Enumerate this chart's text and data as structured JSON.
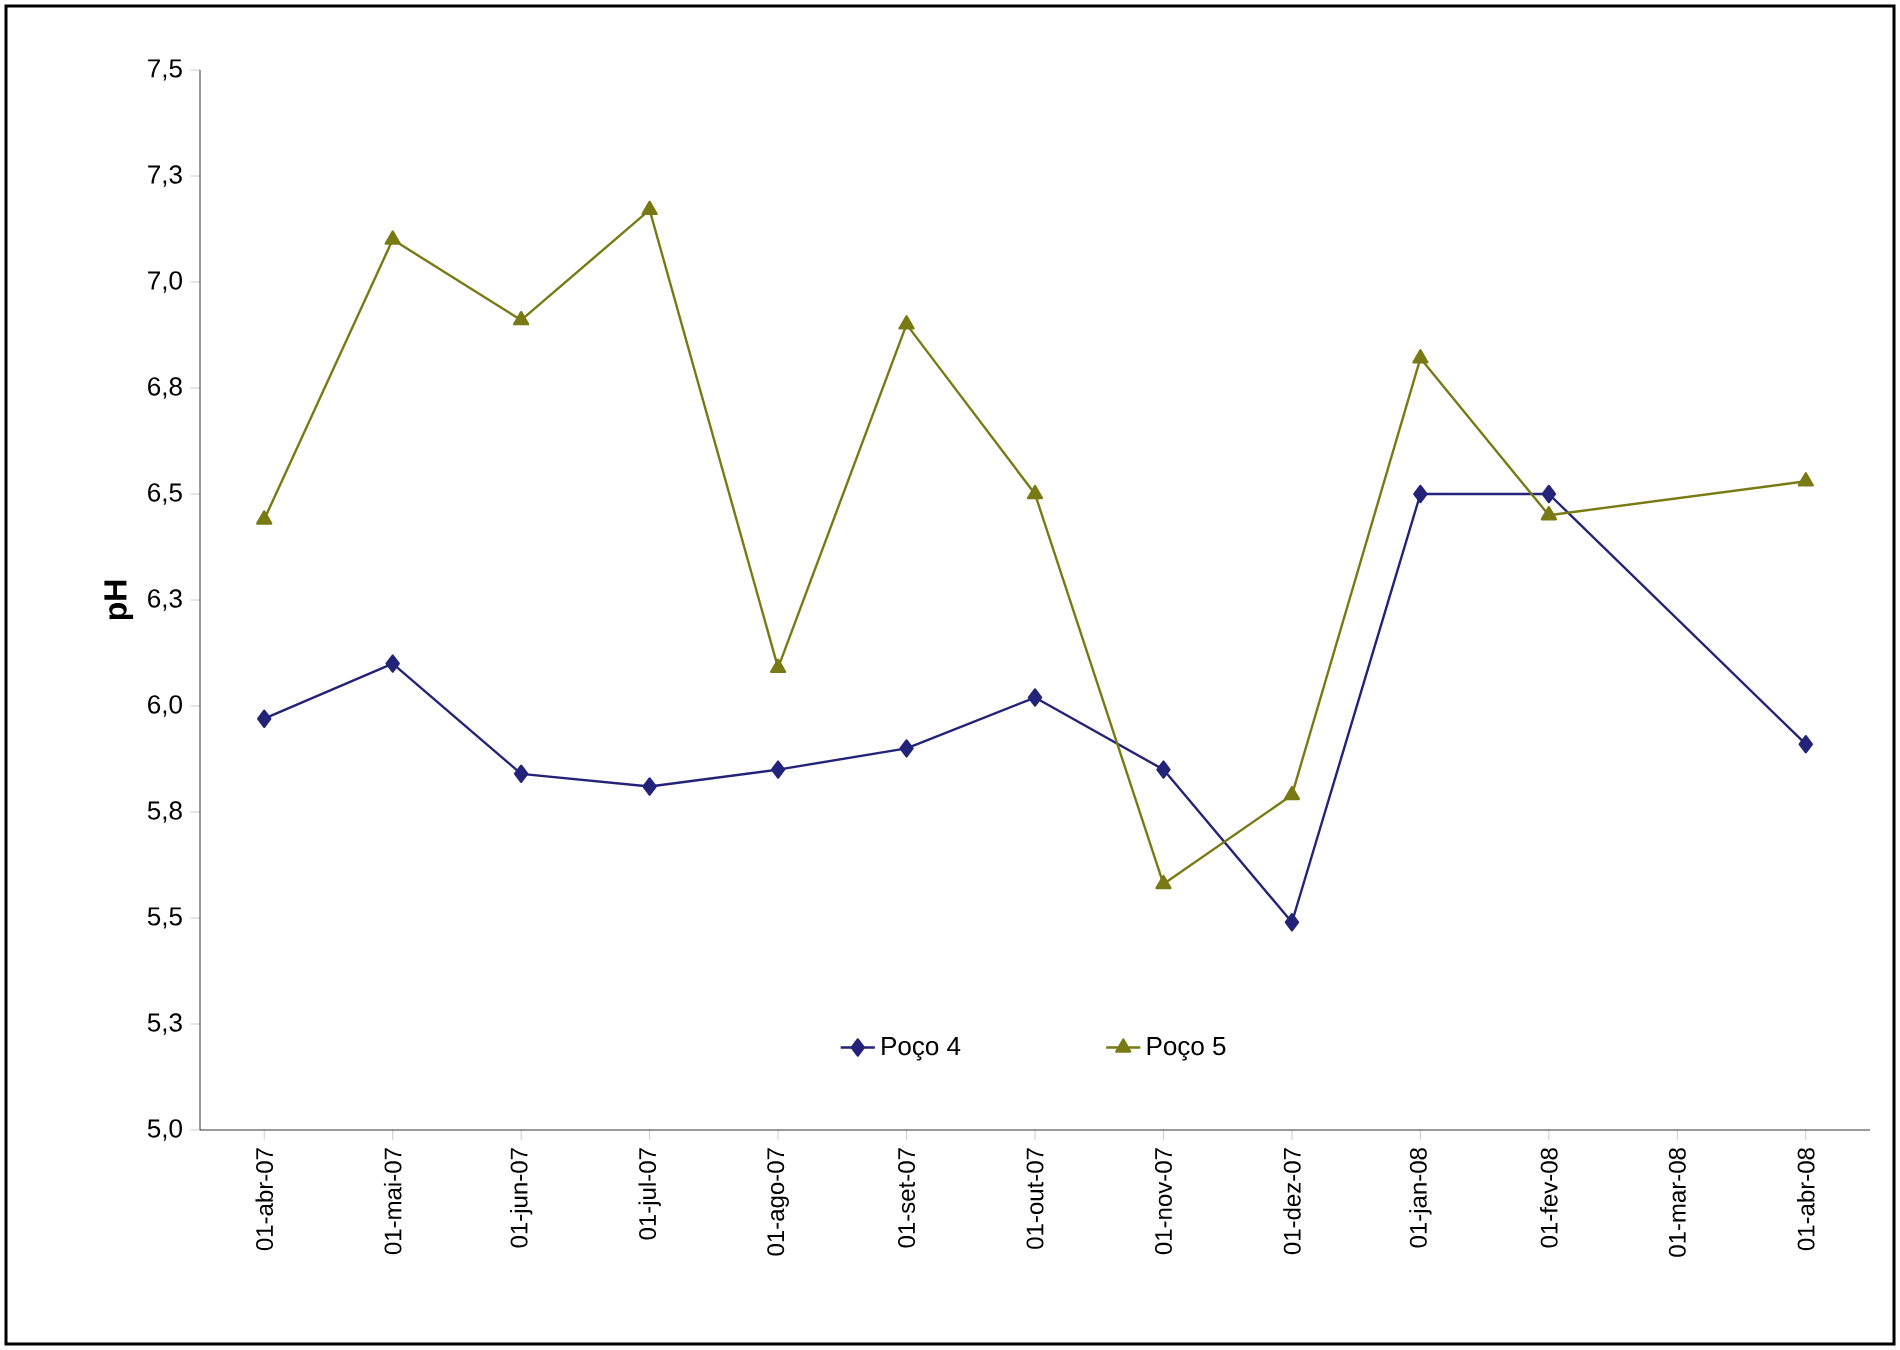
{
  "chart_data": {
    "type": "line",
    "ylabel": "pH",
    "categories": [
      "01-abr-07",
      "01-mai-07",
      "01-jun-07",
      "01-jul-07",
      "01-ago-07",
      "01-set-07",
      "01-out-07",
      "01-nov-07",
      "01-dez-07",
      "01-jan-08",
      "01-fev-08",
      "01-mar-08",
      "01-abr-08"
    ],
    "series": [
      {
        "name": "Poço 4",
        "color": "#23237a",
        "marker": "diamond",
        "values": [
          5.97,
          6.1,
          5.84,
          5.81,
          5.85,
          5.9,
          6.02,
          5.85,
          5.49,
          6.5,
          6.5,
          null,
          5.91
        ]
      },
      {
        "name": "Poço 5",
        "color": "#7a7a14",
        "marker": "triangle",
        "values": [
          6.44,
          7.1,
          6.91,
          7.17,
          6.09,
          6.9,
          6.5,
          5.58,
          5.79,
          6.82,
          6.45,
          null,
          6.53
        ]
      }
    ],
    "ylim": [
      5.0,
      7.5
    ],
    "yticks": [
      {
        "value": 5.0,
        "label": "5,0"
      },
      {
        "value": 5.25,
        "label": "5,3"
      },
      {
        "value": 5.5,
        "label": "5,5"
      },
      {
        "value": 5.75,
        "label": "5,8"
      },
      {
        "value": 6.0,
        "label": "6,0"
      },
      {
        "value": 6.25,
        "label": "6,3"
      },
      {
        "value": 6.5,
        "label": "6,5"
      },
      {
        "value": 6.75,
        "label": "6,8"
      },
      {
        "value": 7.0,
        "label": "7,0"
      },
      {
        "value": 7.25,
        "label": "7,3"
      },
      {
        "value": 7.5,
        "label": "7,5"
      }
    ],
    "grid": false,
    "legend": "bottom",
    "line_style": "solid"
  }
}
